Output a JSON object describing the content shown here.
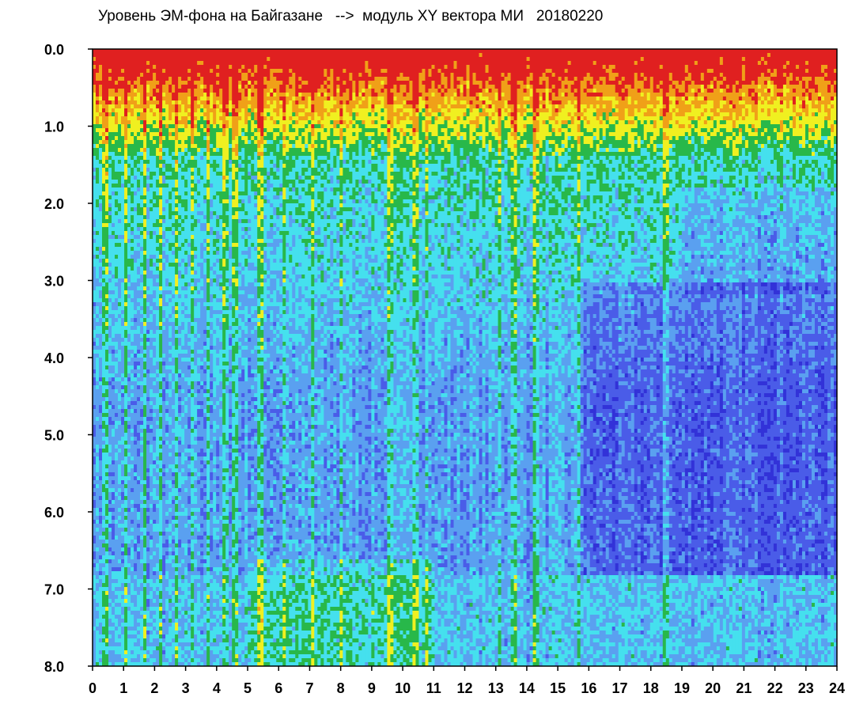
{
  "chart_data": {
    "type": "heatmap",
    "title": "Уровень ЭМ-фона на Байгазане   -->  модуль XY вектора МИ   20180220",
    "xlabel": "",
    "ylabel": "",
    "x_ticks": [
      "0",
      "1",
      "2",
      "3",
      "4",
      "5",
      "6",
      "7",
      "8",
      "9",
      "10",
      "11",
      "12",
      "13",
      "14",
      "15",
      "16",
      "17",
      "18",
      "19",
      "20",
      "21",
      "22",
      "23",
      "24"
    ],
    "y_ticks": [
      "0.0",
      "1.0",
      "2.0",
      "3.0",
      "4.0",
      "5.0",
      "6.0",
      "7.0",
      "8.0"
    ],
    "xlim": [
      0,
      24
    ],
    "ylim": [
      8.0,
      0.0
    ],
    "grid": false,
    "colormap": [
      "#3232d8",
      "#4a5ce8",
      "#5aa0f0",
      "#45e0ee",
      "#28b84a",
      "#f0f020",
      "#f0a018",
      "#e02020"
    ],
    "description_values": {
      "dense_vertical_dips_x": [
        0.4,
        1.1,
        1.7,
        2.2,
        2.7,
        3.2,
        3.7,
        4.3,
        4.6,
        5.4,
        6.2,
        7.1,
        8.0,
        9.6,
        10.4,
        10.8,
        13.1,
        13.6,
        14.3,
        15.7,
        18.5
      ],
      "dark_region_x": [
        15.8,
        24
      ],
      "dark_region_y": [
        3.0,
        6.8
      ],
      "high_level_band_y": [
        0.0,
        1.4
      ]
    }
  }
}
